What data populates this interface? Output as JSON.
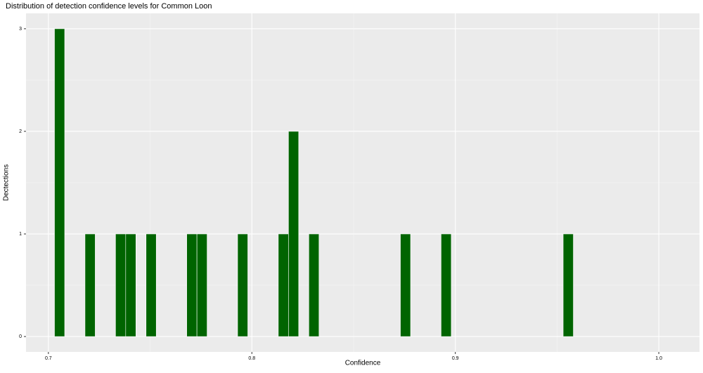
{
  "chart_data": {
    "type": "histogram",
    "title": "Distribution of detection confidence levels for Common Loon",
    "x_label": "Confidence",
    "y_label": "Dectections",
    "bins": [
      0.703,
      0.708,
      0.713,
      0.718,
      0.723,
      0.728,
      0.733,
      0.738,
      0.743,
      0.748,
      0.753,
      0.758,
      0.763,
      0.768,
      0.773,
      0.778,
      0.783,
      0.788,
      0.793,
      0.798,
      0.803,
      0.808,
      0.813,
      0.818,
      0.823,
      0.828,
      0.833,
      0.838,
      0.843,
      0.848,
      0.853,
      0.858,
      0.863,
      0.868,
      0.873,
      0.878,
      0.883,
      0.888,
      0.893,
      0.898,
      0.903,
      0.908,
      0.913,
      0.918,
      0.923,
      0.928,
      0.933,
      0.938,
      0.943,
      0.948,
      0.953,
      0.958
    ],
    "values": [
      3,
      0,
      0,
      1,
      0,
      0,
      1,
      1,
      0,
      1,
      0,
      0,
      0,
      1,
      1,
      0,
      0,
      0,
      1,
      0,
      0,
      0,
      1,
      2,
      0,
      1,
      0,
      0,
      0,
      0,
      0,
      0,
      0,
      0,
      1,
      0,
      0,
      0,
      1,
      0,
      0,
      0,
      0,
      0,
      0,
      0,
      0,
      0,
      0,
      0,
      1
    ],
    "color": "#006400",
    "xlim": [
      0.689,
      1.02
    ],
    "xticks": [
      0.7,
      0.8,
      0.9,
      {
        "value": 1,
        "label": "1.0"
      }
    ],
    "ylim": [
      -0.15,
      3.15
    ],
    "yticks": [
      0,
      1,
      2,
      3
    ],
    "grid": true
  }
}
